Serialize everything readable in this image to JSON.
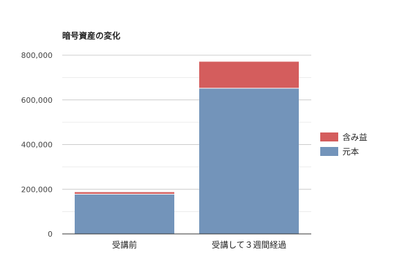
{
  "chart_data": {
    "type": "bar",
    "stacked": true,
    "title": "暗号資産の変化",
    "categories": [
      "受講前",
      "受講して３週間経過"
    ],
    "series": [
      {
        "name": "元本",
        "color": "#7394ba",
        "values": [
          178000,
          652000
        ]
      },
      {
        "name": "含み益",
        "color": "#d45d5d",
        "values": [
          9000,
          119000
        ]
      }
    ],
    "ylim": [
      0,
      800000
    ],
    "yticks": [
      0,
      200000,
      400000,
      600000,
      800000
    ],
    "ytick_labels": [
      "0",
      "200,000",
      "400,000",
      "600,000",
      "800,000"
    ],
    "grid": true,
    "legend_position": "right"
  }
}
